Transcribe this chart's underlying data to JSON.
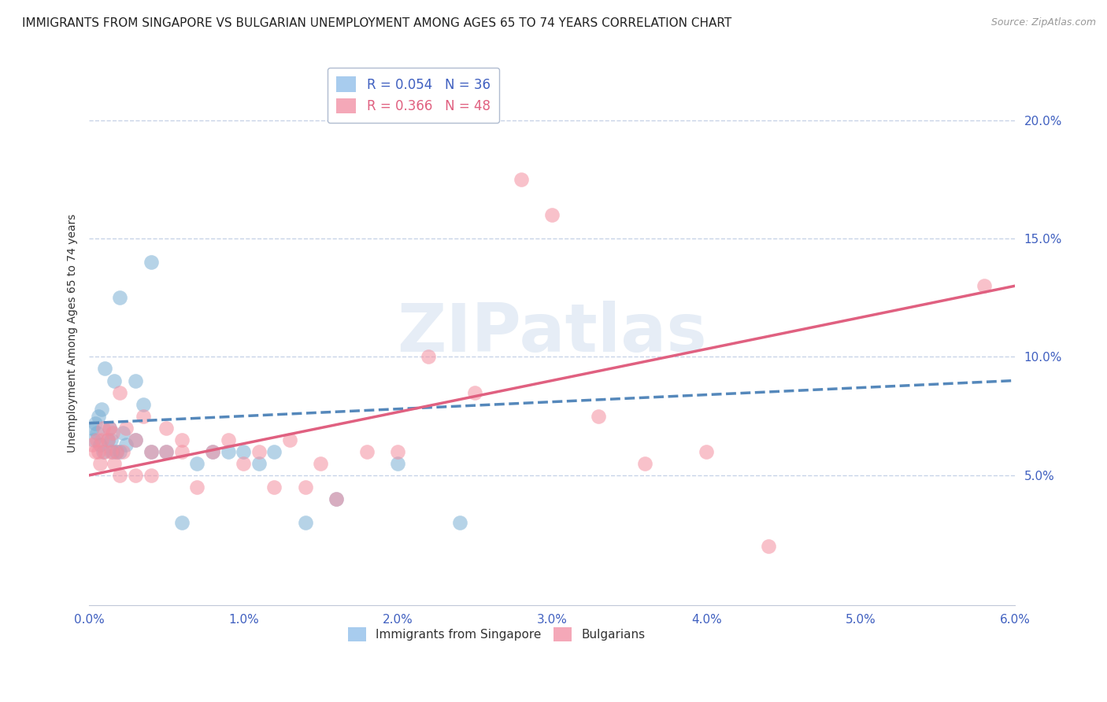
{
  "title": "IMMIGRANTS FROM SINGAPORE VS BULGARIAN UNEMPLOYMENT AMONG AGES 65 TO 74 YEARS CORRELATION CHART",
  "source": "Source: ZipAtlas.com",
  "ylabel": "Unemployment Among Ages 65 to 74 years",
  "xlim": [
    0.0,
    0.06
  ],
  "ylim": [
    -0.005,
    0.225
  ],
  "yticks": [
    0.05,
    0.1,
    0.15,
    0.2
  ],
  "ytick_labels": [
    "5.0%",
    "10.0%",
    "15.0%",
    "20.0%"
  ],
  "xticks": [
    0.0,
    0.01,
    0.02,
    0.03,
    0.04,
    0.05,
    0.06
  ],
  "xtick_labels": [
    "0.0%",
    "1.0%",
    "2.0%",
    "3.0%",
    "4.0%",
    "5.0%",
    "6.0%"
  ],
  "legend_label1": "Immigrants from Singapore",
  "legend_label2": "Bulgarians",
  "watermark": "ZIPatlas",
  "blue_scatter_x": [
    0.0002,
    0.0003,
    0.0004,
    0.0005,
    0.0006,
    0.0007,
    0.0008,
    0.0009,
    0.001,
    0.0012,
    0.0013,
    0.0014,
    0.0015,
    0.0016,
    0.0018,
    0.002,
    0.002,
    0.0022,
    0.0024,
    0.003,
    0.003,
    0.0035,
    0.004,
    0.004,
    0.005,
    0.006,
    0.007,
    0.008,
    0.009,
    0.01,
    0.011,
    0.012,
    0.014,
    0.016,
    0.02,
    0.024
  ],
  "blue_scatter_y": [
    0.07,
    0.065,
    0.072,
    0.068,
    0.075,
    0.063,
    0.078,
    0.06,
    0.095,
    0.065,
    0.07,
    0.065,
    0.06,
    0.09,
    0.06,
    0.06,
    0.125,
    0.068,
    0.063,
    0.065,
    0.09,
    0.08,
    0.06,
    0.14,
    0.06,
    0.03,
    0.055,
    0.06,
    0.06,
    0.06,
    0.055,
    0.06,
    0.03,
    0.04,
    0.055,
    0.03
  ],
  "pink_scatter_x": [
    0.0002,
    0.0004,
    0.0005,
    0.0006,
    0.0007,
    0.0008,
    0.0009,
    0.001,
    0.0012,
    0.0013,
    0.0014,
    0.0015,
    0.0016,
    0.0018,
    0.002,
    0.002,
    0.0022,
    0.0024,
    0.003,
    0.003,
    0.0035,
    0.004,
    0.004,
    0.005,
    0.005,
    0.006,
    0.006,
    0.007,
    0.008,
    0.009,
    0.01,
    0.011,
    0.012,
    0.013,
    0.014,
    0.015,
    0.016,
    0.018,
    0.02,
    0.022,
    0.025,
    0.028,
    0.03,
    0.033,
    0.036,
    0.04,
    0.044,
    0.058
  ],
  "pink_scatter_y": [
    0.063,
    0.06,
    0.065,
    0.06,
    0.055,
    0.065,
    0.07,
    0.06,
    0.065,
    0.07,
    0.06,
    0.068,
    0.055,
    0.06,
    0.05,
    0.085,
    0.06,
    0.07,
    0.05,
    0.065,
    0.075,
    0.05,
    0.06,
    0.06,
    0.07,
    0.06,
    0.065,
    0.045,
    0.06,
    0.065,
    0.055,
    0.06,
    0.045,
    0.065,
    0.045,
    0.055,
    0.04,
    0.06,
    0.06,
    0.1,
    0.085,
    0.175,
    0.16,
    0.075,
    0.055,
    0.06,
    0.02,
    0.13
  ],
  "blue_trend_x0": 0.0,
  "blue_trend_x1": 0.06,
  "blue_trend_y0": 0.072,
  "blue_trend_y1": 0.09,
  "pink_trend_x0": 0.0,
  "pink_trend_x1": 0.06,
  "pink_trend_y0": 0.05,
  "pink_trend_y1": 0.13,
  "blue_color": "#7bafd4",
  "pink_color": "#f48fa0",
  "blue_trend_color": "#5588bb",
  "pink_trend_color": "#e06080",
  "background_color": "#ffffff",
  "grid_color": "#c8d4e8",
  "title_fontsize": 11,
  "axis_label_fontsize": 10,
  "tick_fontsize": 11,
  "tick_color": "#4060c0"
}
